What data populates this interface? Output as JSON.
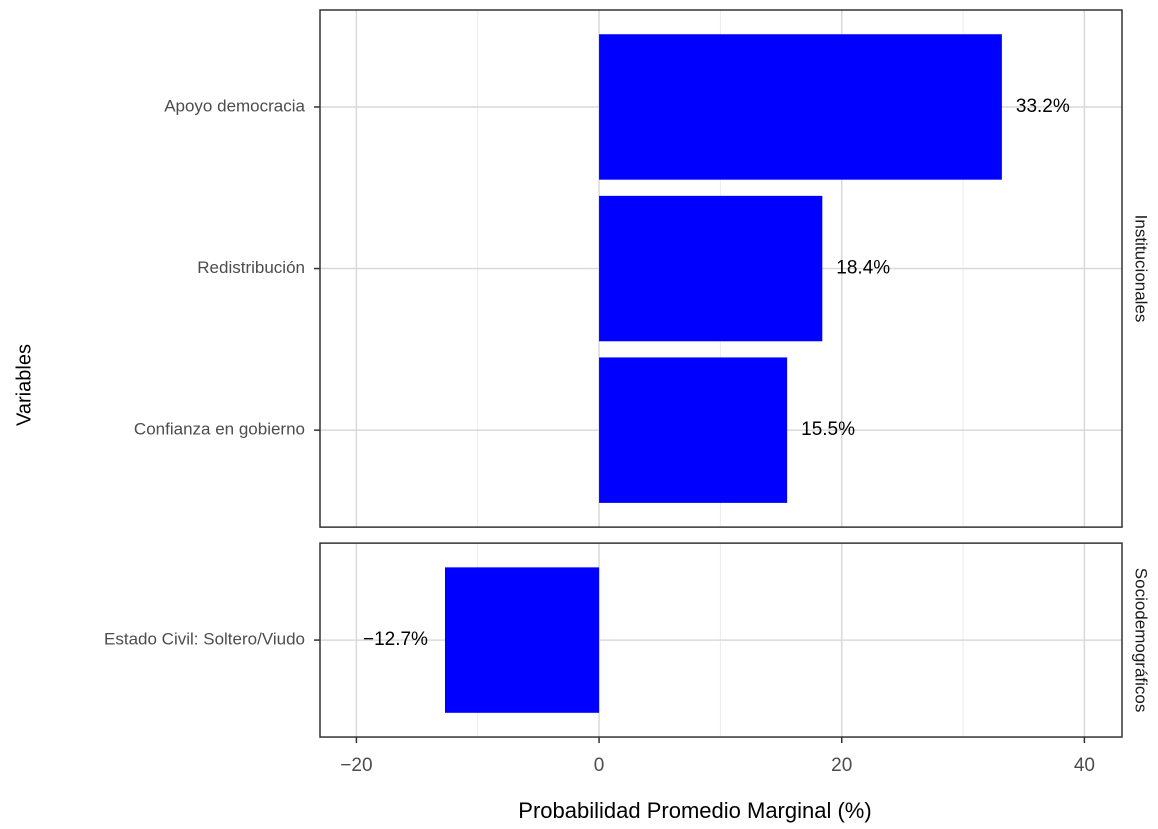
{
  "chart_data": {
    "type": "bar",
    "orientation": "horizontal",
    "x_label": "Probabilidad Promedio Marginal (%)",
    "y_label": "Variables",
    "xlim": [
      -23,
      43.1
    ],
    "xticks": [
      {
        "value": -20,
        "label": "−20"
      },
      0,
      20,
      40
    ],
    "x_minor_grid": [
      -10,
      10,
      30
    ],
    "grid": true,
    "color": "#0000ff",
    "facets": [
      {
        "name": "Institucionales",
        "categories": [
          "Apoyo democracia",
          "Redistribución",
          "Confianza en gobierno"
        ],
        "values": [
          33.2,
          18.4,
          15.5
        ],
        "value_labels": [
          "33.2%",
          "18.4%",
          "15.5%"
        ]
      },
      {
        "name": "Sociodemográficos",
        "categories": [
          "Estado Civil: Soltero/Viudo"
        ],
        "values": [
          -12.7
        ],
        "value_labels": [
          "−12.7%"
        ]
      }
    ]
  }
}
